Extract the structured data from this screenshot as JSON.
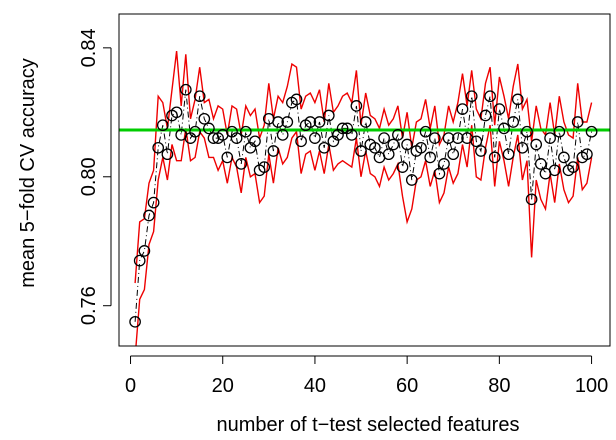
{
  "chart_data": {
    "type": "scatter",
    "title": "",
    "xlabel": "number of t−test selected features",
    "ylabel": "mean 5−fold CV accuracy",
    "xlim": [
      -2.5,
      104
    ],
    "ylim": [
      0.7475,
      0.8505
    ],
    "xticks": [
      0,
      20,
      40,
      60,
      80,
      100
    ],
    "xtick_labels": [
      "0",
      "20",
      "40",
      "60",
      "80",
      "100"
    ],
    "yticks": [
      0.76,
      0.8,
      0.84
    ],
    "ytick_labels": [
      "0.76",
      "0.80",
      "0.84"
    ],
    "grid": false,
    "legend": "none",
    "reference_line": {
      "y": 0.8145,
      "color": "#00cc00"
    },
    "series": [
      {
        "style": "points",
        "marker": "open-circle",
        "color": "#000000",
        "x": [
          1,
          2,
          3,
          4,
          5,
          6,
          7,
          8,
          9,
          10,
          11,
          12,
          13,
          14,
          15,
          16,
          17,
          18,
          19,
          20,
          21,
          22,
          23,
          24,
          25,
          26,
          27,
          28,
          29,
          30,
          31,
          32,
          33,
          34,
          35,
          36,
          37,
          38,
          39,
          40,
          41,
          42,
          43,
          44,
          45,
          46,
          47,
          48,
          49,
          50,
          51,
          52,
          53,
          54,
          55,
          56,
          57,
          58,
          59,
          60,
          61,
          62,
          63,
          64,
          65,
          66,
          67,
          68,
          69,
          70,
          71,
          72,
          73,
          74,
          75,
          76,
          77,
          78,
          79,
          80,
          81,
          82,
          83,
          84,
          85,
          86,
          87,
          88,
          89,
          90,
          91,
          92,
          93,
          94,
          95,
          96,
          97,
          98,
          99,
          100
        ],
        "y": [
          0.755,
          0.774,
          0.777,
          0.788,
          0.792,
          0.809,
          0.816,
          0.807,
          0.819,
          0.82,
          0.813,
          0.827,
          0.812,
          0.814,
          0.825,
          0.818,
          0.815,
          0.812,
          0.812,
          0.813,
          0.806,
          0.814,
          0.812,
          0.804,
          0.814,
          0.809,
          0.811,
          0.802,
          0.803,
          0.818,
          0.808,
          0.817,
          0.813,
          0.817,
          0.823,
          0.824,
          0.811,
          0.816,
          0.817,
          0.812,
          0.817,
          0.809,
          0.819,
          0.811,
          0.813,
          0.815,
          0.815,
          0.813,
          0.822,
          0.808,
          0.817,
          0.81,
          0.809,
          0.806,
          0.812,
          0.807,
          0.81,
          0.813,
          0.803,
          0.81,
          0.799,
          0.808,
          0.809,
          0.814,
          0.806,
          0.812,
          0.801,
          0.804,
          0.812,
          0.807,
          0.812,
          0.821,
          0.812,
          0.825,
          0.811,
          0.808,
          0.819,
          0.825,
          0.806,
          0.821,
          0.815,
          0.807,
          0.817,
          0.824,
          0.809,
          0.814,
          0.793,
          0.81,
          0.804,
          0.801,
          0.812,
          0.802,
          0.814,
          0.806,
          0.802,
          0.803,
          0.817,
          0.806,
          0.807,
          0.814
        ]
      },
      {
        "style": "line",
        "dash": "dash-dot",
        "color": "#000000",
        "x": [
          1,
          2,
          3,
          4,
          5,
          6,
          7,
          8,
          9,
          10,
          11,
          12,
          13,
          14,
          15,
          16,
          17,
          18,
          19,
          20,
          21,
          22,
          23,
          24,
          25,
          26,
          27,
          28,
          29,
          30,
          31,
          32,
          33,
          34,
          35,
          36,
          37,
          38,
          39,
          40,
          41,
          42,
          43,
          44,
          45,
          46,
          47,
          48,
          49,
          50,
          51,
          52,
          53,
          54,
          55,
          56,
          57,
          58,
          59,
          60,
          61,
          62,
          63,
          64,
          65,
          66,
          67,
          68,
          69,
          70,
          71,
          72,
          73,
          74,
          75,
          76,
          77,
          78,
          79,
          80,
          81,
          82,
          83,
          84,
          85,
          86,
          87,
          88,
          89,
          90,
          91,
          92,
          93,
          94,
          95,
          96,
          97,
          98,
          99,
          100
        ],
        "y": [
          0.755,
          0.774,
          0.777,
          0.788,
          0.792,
          0.809,
          0.816,
          0.807,
          0.819,
          0.82,
          0.813,
          0.827,
          0.812,
          0.814,
          0.825,
          0.818,
          0.815,
          0.812,
          0.812,
          0.813,
          0.806,
          0.814,
          0.812,
          0.804,
          0.814,
          0.809,
          0.811,
          0.802,
          0.803,
          0.818,
          0.808,
          0.817,
          0.813,
          0.817,
          0.823,
          0.824,
          0.811,
          0.816,
          0.817,
          0.812,
          0.817,
          0.809,
          0.819,
          0.811,
          0.813,
          0.815,
          0.815,
          0.813,
          0.822,
          0.808,
          0.817,
          0.81,
          0.809,
          0.806,
          0.812,
          0.807,
          0.81,
          0.813,
          0.803,
          0.81,
          0.799,
          0.808,
          0.809,
          0.814,
          0.806,
          0.812,
          0.801,
          0.804,
          0.812,
          0.807,
          0.812,
          0.821,
          0.812,
          0.825,
          0.811,
          0.808,
          0.819,
          0.825,
          0.806,
          0.821,
          0.815,
          0.807,
          0.817,
          0.824,
          0.809,
          0.814,
          0.793,
          0.81,
          0.804,
          0.801,
          0.812,
          0.802,
          0.814,
          0.806,
          0.802,
          0.803,
          0.817,
          0.806,
          0.807,
          0.814
        ]
      },
      {
        "style": "line",
        "color": "#ee0000",
        "x": [
          1,
          2,
          3,
          4,
          5,
          6,
          7,
          8,
          9,
          10,
          11,
          12,
          13,
          14,
          15,
          16,
          17,
          18,
          19,
          20,
          21,
          22,
          23,
          24,
          25,
          26,
          27,
          28,
          29,
          30,
          31,
          32,
          33,
          34,
          35,
          36,
          37,
          38,
          39,
          40,
          41,
          42,
          43,
          44,
          45,
          46,
          47,
          48,
          49,
          50,
          51,
          52,
          53,
          54,
          55,
          56,
          57,
          58,
          59,
          60,
          61,
          62,
          63,
          64,
          65,
          66,
          67,
          68,
          69,
          70,
          71,
          72,
          73,
          74,
          75,
          76,
          77,
          78,
          79,
          80,
          81,
          82,
          83,
          84,
          85,
          86,
          87,
          88,
          89,
          90,
          91,
          92,
          93,
          94,
          95,
          96,
          97,
          98,
          99,
          100
        ],
        "y": [
          0.767,
          0.786,
          0.787,
          0.798,
          0.802,
          0.825,
          0.823,
          0.815,
          0.827,
          0.839,
          0.822,
          0.838,
          0.818,
          0.824,
          0.834,
          0.823,
          0.824,
          0.818,
          0.822,
          0.821,
          0.813,
          0.822,
          0.821,
          0.813,
          0.822,
          0.819,
          0.821,
          0.812,
          0.816,
          0.829,
          0.818,
          0.825,
          0.823,
          0.828,
          0.835,
          0.834,
          0.821,
          0.825,
          0.826,
          0.823,
          0.827,
          0.817,
          0.829,
          0.82,
          0.822,
          0.825,
          0.826,
          0.823,
          0.833,
          0.816,
          0.826,
          0.819,
          0.818,
          0.815,
          0.821,
          0.816,
          0.818,
          0.822,
          0.812,
          0.82,
          0.809,
          0.817,
          0.818,
          0.824,
          0.815,
          0.822,
          0.81,
          0.813,
          0.822,
          0.817,
          0.823,
          0.832,
          0.822,
          0.833,
          0.821,
          0.818,
          0.829,
          0.834,
          0.816,
          0.831,
          0.825,
          0.818,
          0.828,
          0.835,
          0.821,
          0.824,
          0.811,
          0.822,
          0.815,
          0.813,
          0.823,
          0.813,
          0.825,
          0.817,
          0.813,
          0.812,
          0.829,
          0.817,
          0.817,
          0.823
        ]
      },
      {
        "style": "line",
        "color": "#ee0000",
        "x": [
          1,
          2,
          3,
          4,
          5,
          6,
          7,
          8,
          9,
          10,
          11,
          12,
          13,
          14,
          15,
          16,
          17,
          18,
          19,
          20,
          21,
          22,
          23,
          24,
          25,
          26,
          27,
          28,
          29,
          30,
          31,
          32,
          33,
          34,
          35,
          36,
          37,
          38,
          39,
          40,
          41,
          42,
          43,
          44,
          45,
          46,
          47,
          48,
          49,
          50,
          51,
          52,
          53,
          54,
          55,
          56,
          57,
          58,
          59,
          60,
          61,
          62,
          63,
          64,
          65,
          66,
          67,
          68,
          69,
          70,
          71,
          72,
          73,
          74,
          75,
          76,
          77,
          78,
          79,
          80,
          81,
          82,
          83,
          84,
          85,
          86,
          87,
          88,
          89,
          90,
          91,
          92,
          93,
          94,
          95,
          96,
          97,
          98,
          99,
          100
        ],
        "y": [
          0.744,
          0.762,
          0.765,
          0.779,
          0.783,
          0.799,
          0.806,
          0.799,
          0.81,
          0.805,
          0.805,
          0.815,
          0.805,
          0.806,
          0.814,
          0.812,
          0.806,
          0.806,
          0.802,
          0.805,
          0.798,
          0.806,
          0.803,
          0.795,
          0.806,
          0.8,
          0.801,
          0.792,
          0.794,
          0.807,
          0.798,
          0.809,
          0.804,
          0.806,
          0.812,
          0.814,
          0.801,
          0.807,
          0.808,
          0.802,
          0.808,
          0.801,
          0.81,
          0.802,
          0.804,
          0.805,
          0.804,
          0.803,
          0.812,
          0.8,
          0.808,
          0.801,
          0.8,
          0.797,
          0.803,
          0.799,
          0.801,
          0.804,
          0.794,
          0.786,
          0.79,
          0.799,
          0.8,
          0.805,
          0.797,
          0.802,
          0.792,
          0.795,
          0.803,
          0.798,
          0.801,
          0.81,
          0.803,
          0.816,
          0.8,
          0.799,
          0.809,
          0.816,
          0.797,
          0.811,
          0.805,
          0.797,
          0.806,
          0.813,
          0.799,
          0.805,
          0.775,
          0.799,
          0.793,
          0.79,
          0.801,
          0.792,
          0.804,
          0.796,
          0.792,
          0.794,
          0.806,
          0.796,
          0.798,
          0.806
        ]
      }
    ]
  }
}
